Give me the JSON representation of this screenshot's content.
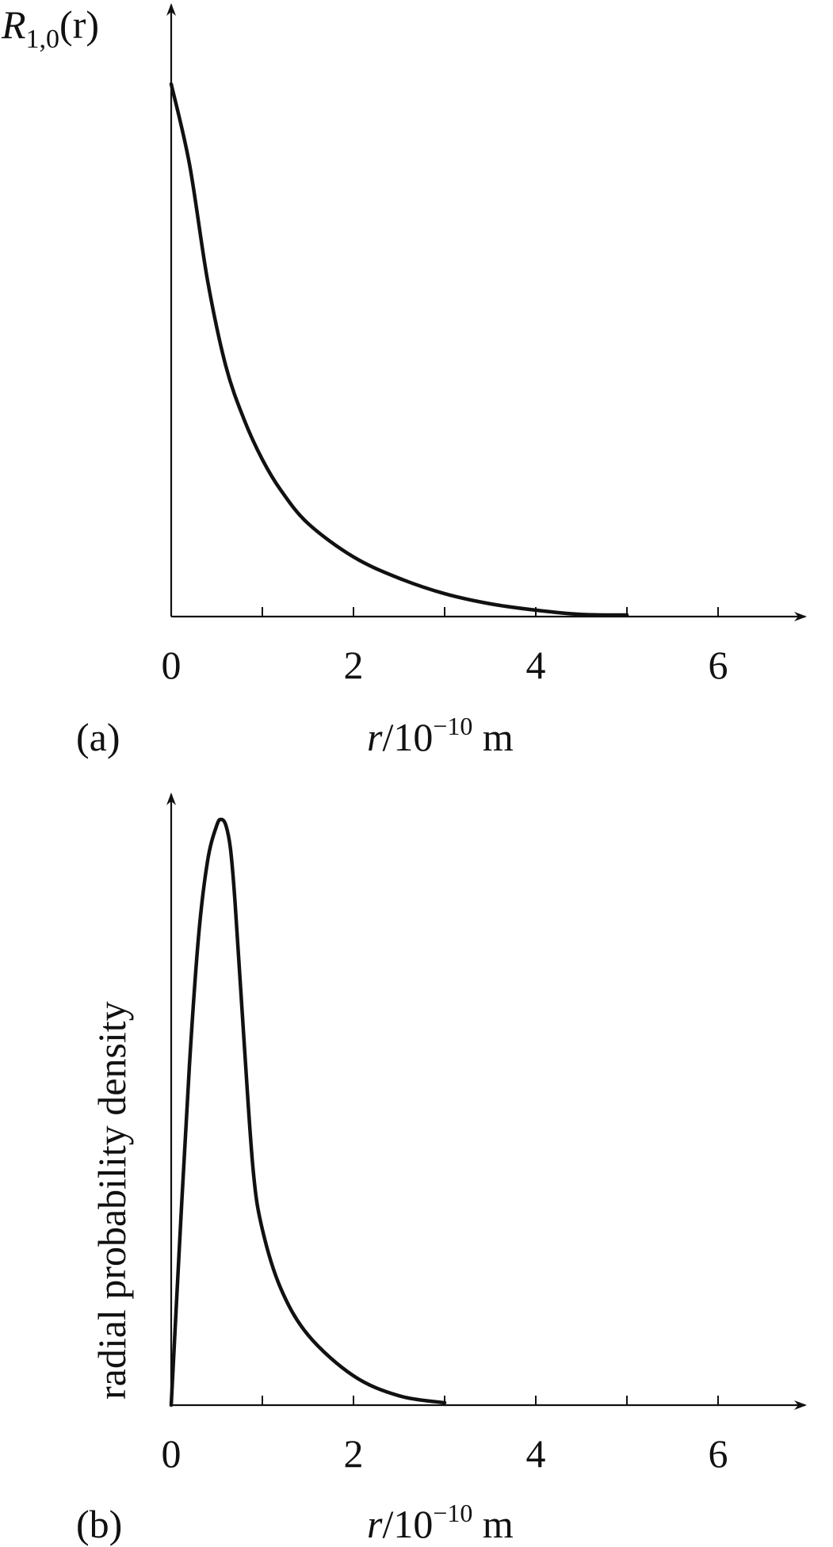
{
  "chart_data": [
    {
      "type": "line",
      "panel_label": "(a)",
      "ylabel": "R",
      "ylabel_sub": "1,0",
      "ylabel_tail": "(r)",
      "xlabel_var": "r",
      "xlabel_unit": "/10",
      "xlabel_exp": "−10",
      "xlabel_m": " m",
      "xlim": [
        0,
        7
      ],
      "ylim": [
        0,
        1.1
      ],
      "xticks": [
        0,
        1,
        2,
        3,
        4,
        5,
        6
      ],
      "xtick_labels": [
        "0",
        "",
        "2",
        "",
        "4",
        "",
        "6"
      ],
      "series": [
        {
          "x": [
            0,
            0.2,
            0.4,
            0.6,
            0.8,
            1.0,
            1.2,
            1.5,
            2.0,
            2.5,
            3.0,
            3.5,
            4.0,
            4.5,
            5.0
          ],
          "y": [
            1.0,
            0.85,
            0.63,
            0.47,
            0.37,
            0.295,
            0.238,
            0.175,
            0.112,
            0.072,
            0.043,
            0.024,
            0.012,
            0.004,
            0.003
          ]
        }
      ]
    },
    {
      "type": "line",
      "panel_label": "(b)",
      "ylabel": "radial probability density",
      "xlabel_var": "r",
      "xlabel_unit": "/10",
      "xlabel_exp": "−10",
      "xlabel_m": " m",
      "xlim": [
        0,
        7
      ],
      "ylim": [
        0,
        1.1
      ],
      "xticks": [
        0,
        1,
        2,
        3,
        4,
        5,
        6
      ],
      "xtick_labels": [
        "0",
        "",
        "2",
        "",
        "4",
        "",
        "6"
      ],
      "series": [
        {
          "x": [
            0,
            0.1,
            0.2,
            0.3,
            0.4,
            0.5,
            0.55,
            0.6,
            0.65,
            0.7,
            0.8,
            0.9,
            1.0,
            1.2,
            1.5,
            2.0,
            2.5,
            3.0
          ],
          "y": [
            0,
            0.3,
            0.58,
            0.8,
            0.93,
            0.99,
            1.0,
            0.99,
            0.95,
            0.86,
            0.62,
            0.4,
            0.3,
            0.2,
            0.12,
            0.05,
            0.016,
            0.004
          ]
        }
      ]
    }
  ]
}
